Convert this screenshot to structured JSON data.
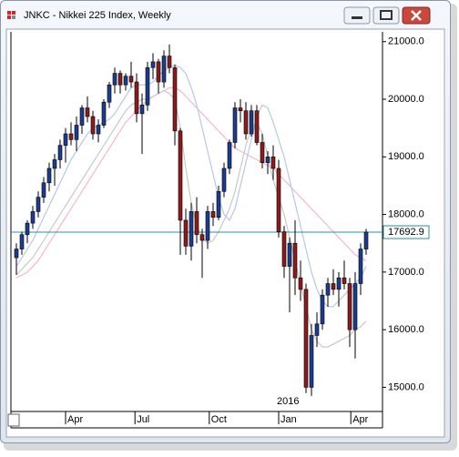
{
  "window_title": "JNKC - Nikkei 225 Index, Weekly",
  "chart_data": {
    "type": "candlestick",
    "up_color": "#1c3c8c",
    "down_color": "#8c1c1c",
    "xlim": [
      -1,
      67
    ],
    "xticks": [
      {
        "value": 9,
        "label": "Apr"
      },
      {
        "value": 21.7,
        "label": "Jul"
      },
      {
        "value": 35.3,
        "label": "Oct"
      },
      {
        "value": 48,
        "label": "Jan"
      },
      {
        "value": 61.2,
        "label": "Apr"
      }
    ],
    "year_label": "2016",
    "ylim": [
      14580,
      21170
    ],
    "yticks": [
      {
        "value": 15000,
        "label": "15000.0"
      },
      {
        "value": 16000,
        "label": "16000.0"
      },
      {
        "value": 17000,
        "label": "17000.0"
      },
      {
        "value": 18000,
        "label": "18000.0"
      },
      {
        "value": 19000,
        "label": "19000.0"
      },
      {
        "value": 20000,
        "label": "20000.0"
      },
      {
        "value": 21000,
        "label": "21000.0"
      }
    ],
    "last_price": 17692.9,
    "last_price_color": "#2a8f9c",
    "candles": [
      [
        17250,
        17500,
        16950,
        17400
      ],
      [
        17400,
        17700,
        17300,
        17650
      ],
      [
        17650,
        17900,
        17500,
        17850
      ],
      [
        17850,
        18150,
        17750,
        18050
      ],
      [
        18050,
        18400,
        17950,
        18300
      ],
      [
        18300,
        18650,
        18200,
        18550
      ],
      [
        18550,
        18900,
        18400,
        18800
      ],
      [
        18800,
        19050,
        18500,
        18950
      ],
      [
        18950,
        19300,
        18800,
        19200
      ],
      [
        19200,
        19500,
        18900,
        19400
      ],
      [
        19400,
        19600,
        19200,
        19300
      ],
      [
        19300,
        19700,
        19100,
        19550
      ],
      [
        19550,
        19900,
        19400,
        19850
      ],
      [
        19850,
        20050,
        19600,
        19700
      ],
      [
        19700,
        19800,
        19300,
        19400
      ],
      [
        19400,
        19650,
        19250,
        19550
      ],
      [
        19550,
        20000,
        19500,
        19950
      ],
      [
        19950,
        20300,
        19850,
        20250
      ],
      [
        20250,
        20550,
        20100,
        20450
      ],
      [
        20450,
        20500,
        20100,
        20250
      ],
      [
        20250,
        20450,
        20150,
        20400
      ],
      [
        20400,
        20650,
        20200,
        20300
      ],
      [
        20300,
        20450,
        19600,
        19750
      ],
      [
        19750,
        20100,
        19050,
        19900
      ],
      [
        19900,
        20650,
        19800,
        20550
      ],
      [
        20550,
        20800,
        20350,
        20650
      ],
      [
        20650,
        20700,
        20100,
        20300
      ],
      [
        20300,
        20850,
        20200,
        20750
      ],
      [
        20750,
        20950,
        20450,
        20550
      ],
      [
        20550,
        20600,
        19200,
        19450
      ],
      [
        19450,
        19500,
        17300,
        17900
      ],
      [
        17900,
        18100,
        17300,
        17450
      ],
      [
        17450,
        18200,
        17200,
        18050
      ],
      [
        18050,
        18300,
        17500,
        17650
      ],
      [
        17650,
        17750,
        16900,
        17550
      ],
      [
        17550,
        18150,
        17400,
        18050
      ],
      [
        18050,
        18200,
        17800,
        17950
      ],
      [
        17950,
        18500,
        17900,
        18400
      ],
      [
        18400,
        18900,
        18300,
        18800
      ],
      [
        18800,
        19300,
        18700,
        19250
      ],
      [
        19250,
        19950,
        19150,
        19850
      ],
      [
        19850,
        20000,
        19600,
        19800
      ],
      [
        19800,
        19950,
        19300,
        19400
      ],
      [
        19400,
        19900,
        19350,
        19800
      ],
      [
        19800,
        19900,
        19200,
        19250
      ],
      [
        19250,
        19400,
        18800,
        18900
      ],
      [
        18900,
        19100,
        18700,
        19000
      ],
      [
        19000,
        19200,
        18600,
        18800
      ],
      [
        18800,
        18950,
        17600,
        17700
      ],
      [
        17700,
        17800,
        16900,
        17100
      ],
      [
        17100,
        17600,
        16300,
        17500
      ],
      [
        17500,
        17900,
        16600,
        16900
      ],
      [
        16900,
        17200,
        16500,
        16700
      ],
      [
        16700,
        16800,
        14900,
        15000
      ],
      [
        15000,
        16100,
        14850,
        15900
      ],
      [
        15900,
        16300,
        15700,
        16100
      ],
      [
        16100,
        16700,
        16000,
        16600
      ],
      [
        16600,
        16900,
        16400,
        16800
      ],
      [
        16800,
        17050,
        16600,
        16700
      ],
      [
        16700,
        17000,
        16400,
        16900
      ],
      [
        16900,
        17200,
        16700,
        16800
      ],
      [
        16800,
        16900,
        15700,
        16000
      ],
      [
        16000,
        17000,
        15500,
        16800
      ],
      [
        16800,
        17500,
        16600,
        17400
      ],
      [
        17400,
        17750,
        17300,
        17692.9
      ]
    ],
    "lines": [
      {
        "color": "#c8c8c8",
        "values": [
          16950,
          17050,
          17150,
          17250,
          17400,
          17550,
          17700,
          17850,
          18000,
          18150,
          18300,
          18450,
          18600,
          18750,
          18900,
          19050,
          19200,
          19350,
          19500,
          19650,
          19800,
          19900,
          19950,
          20000,
          20000,
          20050,
          20100,
          20150,
          20100,
          20000,
          19500,
          18800,
          18200,
          17800,
          17600,
          17500,
          17550,
          17700,
          17900,
          18100,
          18400,
          18800,
          19200,
          19500,
          19600,
          19400,
          19000,
          18600,
          18300,
          18000,
          17600,
          17200,
          16800,
          16400,
          16000,
          15800,
          15700,
          15700,
          15750,
          15800,
          15850,
          15900,
          16000,
          16050,
          16150
        ]
      },
      {
        "color": "#f4b8c8",
        "values": [
          16900,
          16950,
          17000,
          17100,
          17200,
          17350,
          17500,
          17650,
          17800,
          17950,
          18100,
          18250,
          18400,
          18550,
          18700,
          18850,
          19000,
          19150,
          19300,
          19450,
          19600,
          19700,
          19800,
          19900,
          19980,
          20050,
          20100,
          20150,
          20200,
          20200,
          20150,
          20050,
          19950,
          19850,
          19750,
          19650,
          19550,
          19450,
          19350,
          19250,
          19150,
          19100,
          19050,
          19000,
          18950,
          18900,
          18850,
          18800,
          18700,
          18600,
          18500,
          18400,
          18300,
          18200,
          18100,
          18000,
          17900,
          17800,
          17700,
          17600,
          17500,
          17400,
          17300,
          17250,
          17200
        ]
      },
      {
        "color": "#b4c8e8",
        "values": [
          17100,
          17250,
          17400,
          17550,
          17750,
          17950,
          18150,
          18350,
          18550,
          18750,
          18950,
          19100,
          19250,
          19400,
          19500,
          19550,
          19600,
          19650,
          19750,
          19900,
          20050,
          20200,
          20250,
          20250,
          20250,
          20300,
          20400,
          20500,
          20550,
          20600,
          20550,
          20450,
          20200,
          19900,
          19500,
          19100,
          18700,
          18300,
          18000,
          17900,
          18100,
          18500,
          18900,
          19300,
          19700,
          19900,
          19850,
          19600,
          19300,
          19000,
          18600,
          18200,
          17800,
          17400,
          17000,
          16700,
          16500,
          16400,
          16400,
          16500,
          16600,
          16700,
          16800,
          16900,
          17100
        ]
      }
    ]
  }
}
